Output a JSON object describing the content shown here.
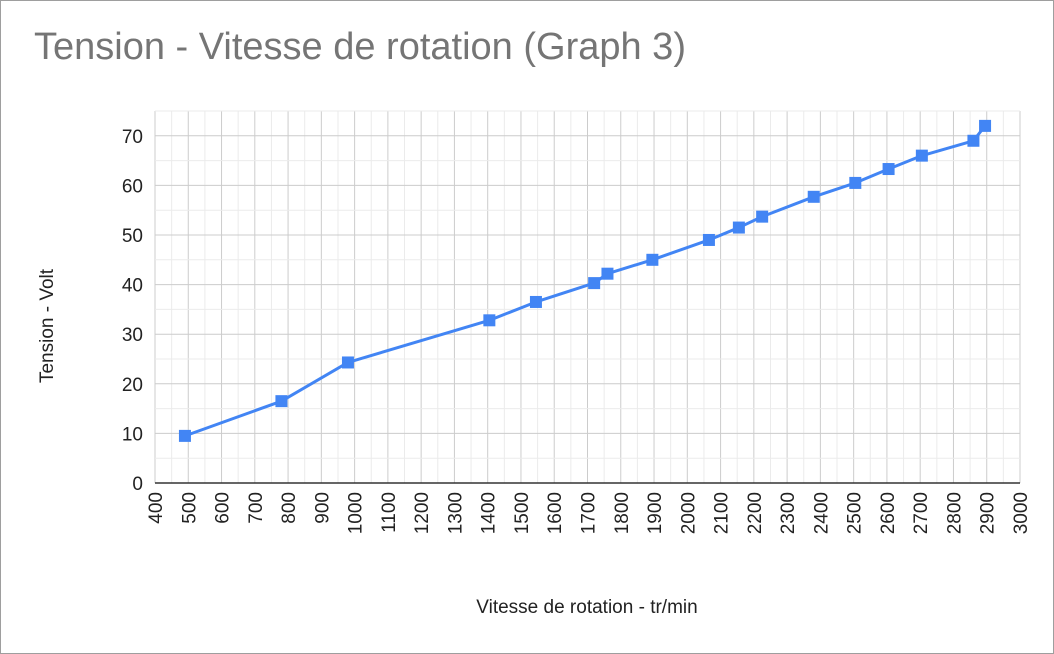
{
  "chart_data": {
    "type": "line",
    "title": "Tension - Vitesse de rotation (Graph 3)",
    "xlabel": "Vitesse de rotation - tr/min",
    "ylabel": "Tension - Volt",
    "xlim": [
      400,
      3000
    ],
    "ylim": [
      0,
      75
    ],
    "x_ticks": [
      400,
      500,
      600,
      700,
      800,
      900,
      1000,
      1100,
      1200,
      1300,
      1400,
      1500,
      1600,
      1700,
      1800,
      1900,
      2000,
      2100,
      2200,
      2300,
      2400,
      2500,
      2600,
      2700,
      2800,
      2900,
      3000
    ],
    "y_ticks": [
      0,
      10,
      20,
      30,
      40,
      50,
      60,
      70
    ],
    "grid": true,
    "legend": "none",
    "series": [
      {
        "color": "#4285f4",
        "marker": "square",
        "points": [
          {
            "x": 490,
            "y": 9.5
          },
          {
            "x": 780,
            "y": 16.5
          },
          {
            "x": 980,
            "y": 24.3
          },
          {
            "x": 1405,
            "y": 32.8
          },
          {
            "x": 1545,
            "y": 36.5
          },
          {
            "x": 1720,
            "y": 40.3
          },
          {
            "x": 1760,
            "y": 42.2
          },
          {
            "x": 1895,
            "y": 45.0
          },
          {
            "x": 2065,
            "y": 49.0
          },
          {
            "x": 2155,
            "y": 51.5
          },
          {
            "x": 2225,
            "y": 53.7
          },
          {
            "x": 2380,
            "y": 57.7
          },
          {
            "x": 2505,
            "y": 60.5
          },
          {
            "x": 2605,
            "y": 63.3
          },
          {
            "x": 2705,
            "y": 66.0
          },
          {
            "x": 2860,
            "y": 69.0
          },
          {
            "x": 2895,
            "y": 72.0
          }
        ]
      }
    ]
  }
}
